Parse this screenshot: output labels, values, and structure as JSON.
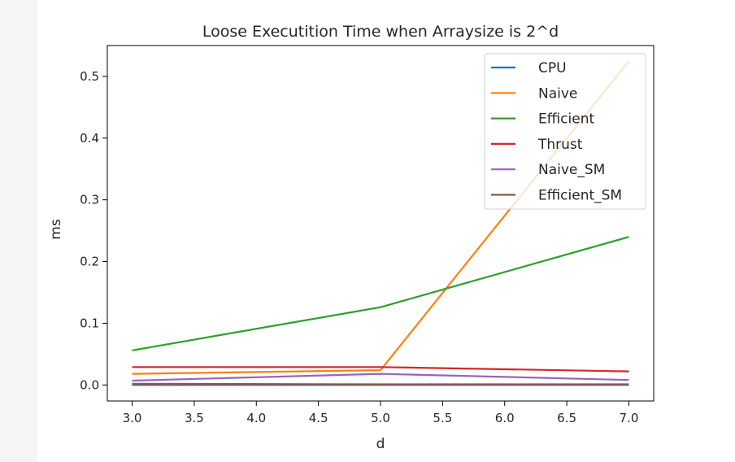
{
  "chart_data": {
    "type": "line",
    "title": "Loose Executition Time when Arraysize is 2^d",
    "xlabel": "d",
    "ylabel": "ms",
    "xlim": [
      2.8,
      7.2
    ],
    "ylim": [
      -0.026,
      0.55
    ],
    "xticks": [
      "3.0",
      "3.5",
      "4.0",
      "4.5",
      "5.0",
      "5.5",
      "6.0",
      "6.5",
      "7.0"
    ],
    "yticks": [
      "0.0",
      "0.1",
      "0.2",
      "0.3",
      "0.4",
      "0.5"
    ],
    "x": [
      3,
      5,
      7
    ],
    "legend_position": "upper right",
    "grid": false,
    "series": [
      {
        "name": "CPU",
        "color": "#1f77b4",
        "values": [
          0.0,
          0.0,
          0.0
        ]
      },
      {
        "name": "Naive",
        "color": "#ff7f0e",
        "values": [
          0.018,
          0.024,
          0.525
        ]
      },
      {
        "name": "Efficient",
        "color": "#2ca02c",
        "values": [
          0.056,
          0.126,
          0.24
        ]
      },
      {
        "name": "Thrust",
        "color": "#d62728",
        "values": [
          0.029,
          0.029,
          0.022
        ]
      },
      {
        "name": "Naive_SM",
        "color": "#9467bd",
        "values": [
          0.007,
          0.018,
          0.008
        ]
      },
      {
        "name": "Efficient_SM",
        "color": "#8c564b",
        "values": [
          0.002,
          0.001,
          0.001
        ]
      }
    ]
  }
}
